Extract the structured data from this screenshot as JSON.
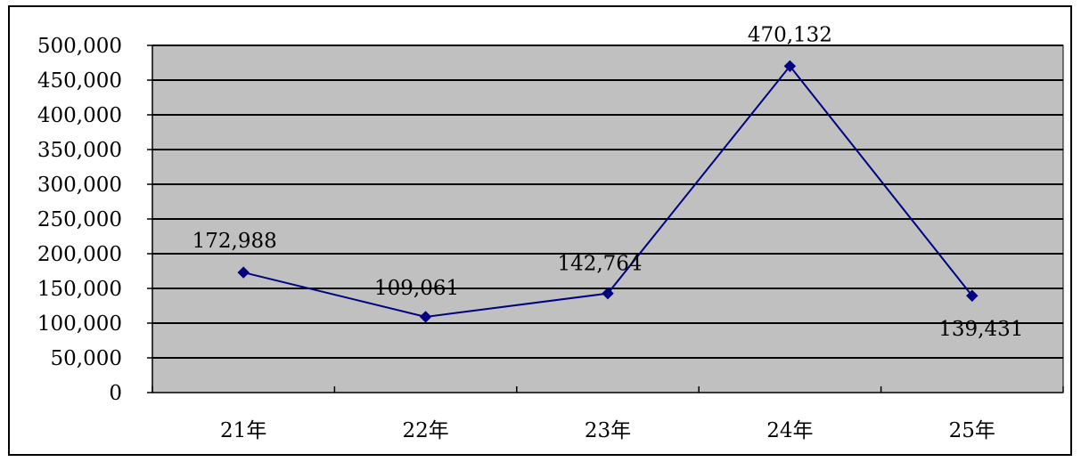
{
  "chart_data": {
    "type": "line",
    "title": "",
    "xlabel": "",
    "ylabel": "",
    "categories": [
      "21年",
      "22年",
      "23年",
      "24年",
      "25年"
    ],
    "series": [
      {
        "values": [
          172988,
          109061,
          142764,
          470132,
          139431
        ],
        "data_labels": [
          "172,988",
          "109,061",
          "142,764",
          "470,132",
          "139,431"
        ]
      }
    ],
    "ylim": [
      0,
      500000
    ],
    "y_ticks": [
      0,
      50000,
      100000,
      150000,
      200000,
      250000,
      300000,
      350000,
      400000,
      450000,
      500000
    ],
    "y_tick_labels": [
      "0",
      "50,000",
      "100,000",
      "150,000",
      "200,000",
      "250,000",
      "300,000",
      "350,000",
      "400,000",
      "450,000",
      "500,000"
    ],
    "grid": true,
    "legend": "none",
    "colors": {
      "plot_background": "#c0c0c0",
      "gridline": "#000000",
      "series_line": "#000080",
      "marker": "#000080"
    },
    "marker": "diamond"
  }
}
